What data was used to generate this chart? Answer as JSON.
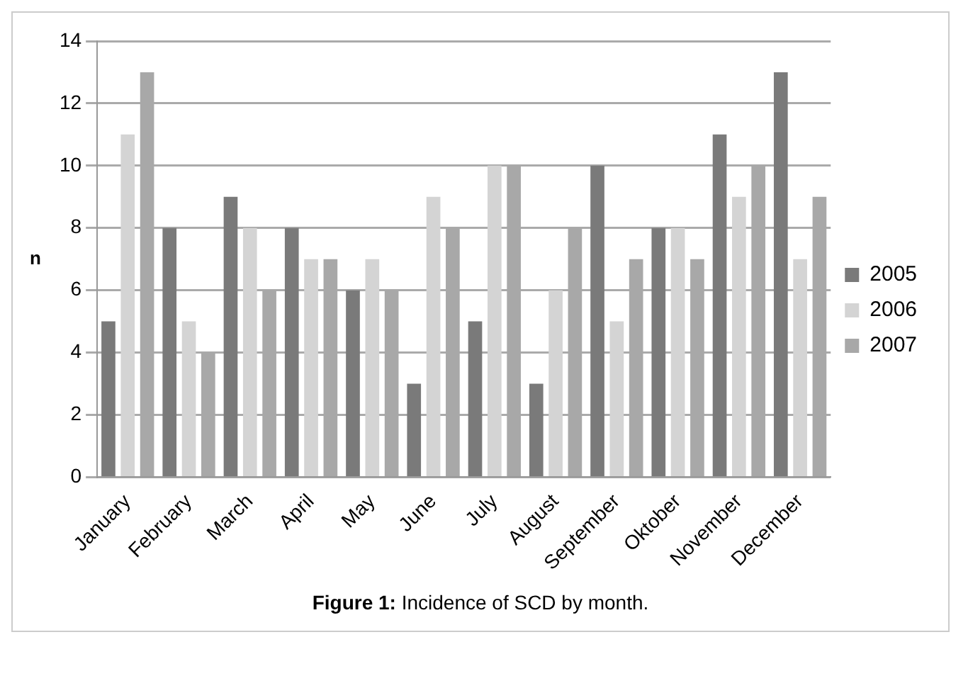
{
  "chart_data": {
    "type": "bar",
    "ylabel": "n",
    "categories": [
      "January",
      "February",
      "March",
      "April",
      "May",
      "June",
      "July",
      "August",
      "September",
      "Oktober",
      "November",
      "December"
    ],
    "series": [
      {
        "name": "2005",
        "color": "#7a7a7a",
        "values": [
          5,
          8,
          9,
          8,
          6,
          3,
          5,
          3,
          10,
          8,
          11,
          13
        ]
      },
      {
        "name": "2006",
        "color": "#d4d4d4",
        "values": [
          11,
          5,
          8,
          7,
          7,
          9,
          10,
          6,
          5,
          8,
          9,
          7
        ]
      },
      {
        "name": "2007",
        "color": "#a8a8a8",
        "values": [
          13,
          4,
          6,
          7,
          6,
          8,
          10,
          8,
          7,
          7,
          10,
          9
        ]
      }
    ],
    "ylim": [
      0,
      14
    ],
    "yticks": [
      0,
      2,
      4,
      6,
      8,
      10,
      12,
      14
    ],
    "grid": "y",
    "legend": "right",
    "annotations": [
      "**Figure 1:** Incidence of SCD by month."
    ]
  }
}
